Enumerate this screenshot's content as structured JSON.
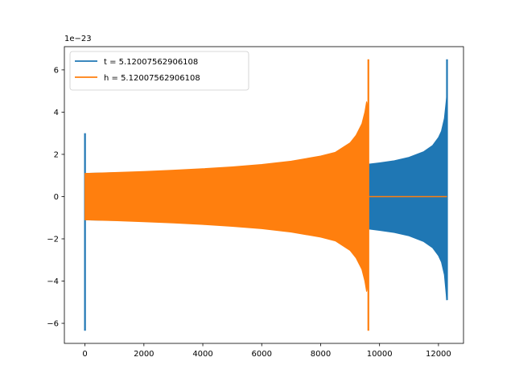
{
  "chart_data": {
    "type": "line",
    "title": "",
    "xlabel": "",
    "ylabel": "",
    "xlim": [
      -700,
      12850
    ],
    "ylim": [
      -6.95,
      7.1
    ],
    "y_offset_label": "1e−23",
    "x_ticks": [
      0,
      2000,
      4000,
      6000,
      8000,
      10000,
      12000
    ],
    "x_tick_labels": [
      "0",
      "2000",
      "4000",
      "6000",
      "8000",
      "10000",
      "12000"
    ],
    "y_ticks": [
      -6,
      -4,
      -2,
      0,
      2,
      4,
      6
    ],
    "y_tick_labels": [
      "−6",
      "−4",
      "−2",
      "0",
      "2",
      "4",
      "6"
    ],
    "grid": false,
    "legend_position": "upper-left",
    "series": [
      {
        "name": "t = 5.12007562906108",
        "color": "#1f77b4",
        "envelope": {
          "x": [
            0,
            1000,
            2000,
            3000,
            4000,
            5000,
            6000,
            7000,
            8000,
            9000,
            9400,
            9600,
            10000,
            10500,
            11000,
            11500,
            11800,
            12000,
            12100,
            12200,
            12280
          ],
          "upper": [
            1.1,
            1.13,
            1.16,
            1.2,
            1.24,
            1.28,
            1.33,
            1.39,
            1.45,
            1.5,
            1.52,
            1.53,
            1.6,
            1.7,
            1.86,
            2.13,
            2.42,
            2.8,
            3.1,
            3.7,
            4.75
          ],
          "lower": [
            -1.1,
            -1.13,
            -1.16,
            -1.2,
            -1.24,
            -1.28,
            -1.33,
            -1.39,
            -1.45,
            -1.5,
            -1.52,
            -1.53,
            -1.6,
            -1.7,
            -1.86,
            -2.13,
            -2.42,
            -2.8,
            -3.1,
            -3.7,
            -4.9
          ]
        },
        "spikes": [
          {
            "x": 0,
            "min": -6.35,
            "max": 3.0
          },
          {
            "x": 12290,
            "min": -4.9,
            "max": 6.5
          }
        ]
      },
      {
        "name": "h = 5.12007562906108",
        "color": "#ff7f0e",
        "envelope": {
          "x": [
            0,
            1000,
            2000,
            3000,
            4000,
            5000,
            6000,
            7000,
            8000,
            8500,
            9000,
            9200,
            9400,
            9500,
            9560,
            9610
          ],
          "upper": [
            1.1,
            1.14,
            1.19,
            1.25,
            1.32,
            1.41,
            1.52,
            1.68,
            1.92,
            2.1,
            2.55,
            2.9,
            3.45,
            4.0,
            4.5,
            4.2
          ],
          "lower": [
            -1.1,
            -1.14,
            -1.19,
            -1.25,
            -1.32,
            -1.41,
            -1.52,
            -1.68,
            -1.92,
            -2.1,
            -2.55,
            -2.9,
            -3.45,
            -4.0,
            -4.5,
            -4.2
          ]
        },
        "spikes": [
          {
            "x": 9620,
            "min": -6.35,
            "max": 6.5
          }
        ],
        "flat": {
          "x": [
            9640,
            12290
          ],
          "y": 0
        }
      }
    ]
  }
}
